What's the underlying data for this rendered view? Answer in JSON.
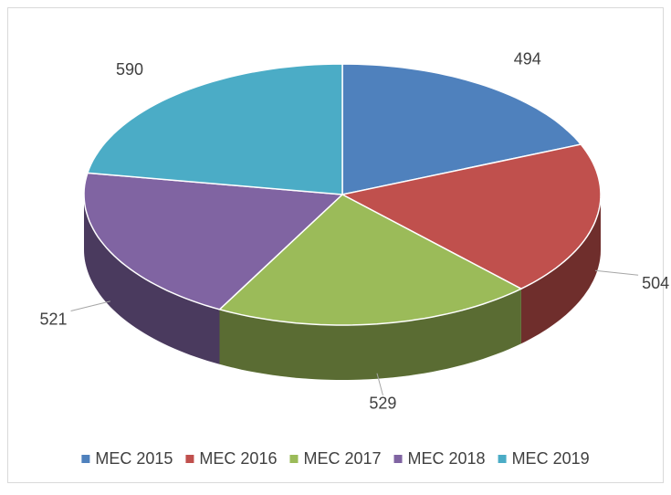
{
  "chart_data": {
    "type": "pie3d",
    "series": [
      {
        "name": "MEC 2015",
        "color": "#4f81bd",
        "value": 494
      },
      {
        "name": "MEC 2016",
        "color": "#c0504d",
        "value": 504
      },
      {
        "name": "MEC 2017",
        "color": "#9bbb59",
        "value": 529
      },
      {
        "name": "MEC 2018",
        "color": "#8064a2",
        "value": 521
      },
      {
        "name": "MEC 2019",
        "color": "#4bacc6",
        "value": 590
      }
    ],
    "legend": "bottom"
  }
}
